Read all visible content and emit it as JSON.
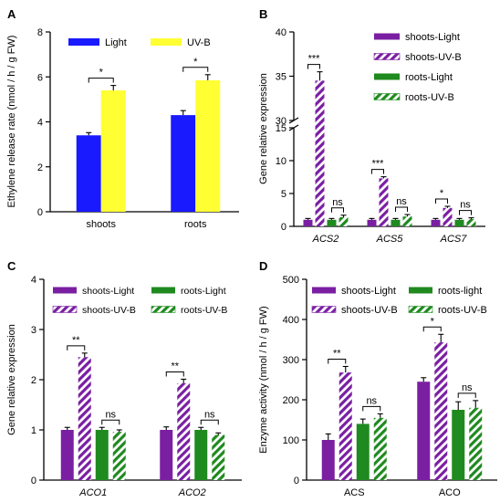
{
  "colors": {
    "light_blue": "#1a1aff",
    "uvb_yellow": "#ffff33",
    "purple": "#7a1fa2",
    "green": "#1f8a1f",
    "axis": "#000000"
  },
  "chart_data": [
    {
      "panel": "A",
      "type": "bar",
      "ylabel": "Ethylene release rate (nmol / h / g FW)",
      "ylim": [
        0,
        8
      ],
      "yticks": [
        "0",
        "2",
        "4",
        "6",
        "8"
      ],
      "categories": [
        "shoots",
        "roots"
      ],
      "legend_position": "top",
      "series": [
        {
          "name": "Light",
          "style": "solid",
          "color": "#1a1aff",
          "values": [
            3.4,
            4.3
          ],
          "errors": [
            0.12,
            0.2
          ]
        },
        {
          "name": "UV-B",
          "style": "solid",
          "color": "#ffff33",
          "values": [
            5.4,
            5.85
          ],
          "errors": [
            0.22,
            0.25
          ]
        }
      ],
      "significance": [
        {
          "category": 0,
          "label": "*"
        },
        {
          "category": 1,
          "label": "*"
        }
      ]
    },
    {
      "panel": "B",
      "type": "bar",
      "ylabel": "Gene relative expression",
      "broken_axis": true,
      "ylim_lower": [
        0,
        15
      ],
      "ylim_upper": [
        30,
        40
      ],
      "yticks_lower": [
        "0",
        "5",
        "10",
        "15"
      ],
      "yticks_upper": [
        "30",
        "35",
        "40"
      ],
      "categories": [
        "ACS2",
        "ACS5",
        "ACS7"
      ],
      "legend_position": "top-right",
      "series": [
        {
          "name": "shoots-Light",
          "style": "solid",
          "color": "#7a1fa2",
          "values": [
            1.0,
            1.0,
            1.0
          ],
          "errors": [
            0.2,
            0.2,
            0.2
          ]
        },
        {
          "name": "shoots-UV-B",
          "style": "hatched",
          "color": "#7a1fa2",
          "values": [
            34.5,
            7.3,
            2.8
          ],
          "errors": [
            1.0,
            0.25,
            0.25
          ]
        },
        {
          "name": "roots-Light",
          "style": "solid",
          "color": "#1f8a1f",
          "values": [
            1.0,
            1.0,
            1.0
          ],
          "errors": [
            0.2,
            0.2,
            0.2
          ]
        },
        {
          "name": "roots-UV-B",
          "style": "hatched",
          "color": "#1f8a1f",
          "values": [
            1.4,
            1.5,
            1.1
          ],
          "errors": [
            0.3,
            0.3,
            0.2
          ]
        }
      ],
      "significance": [
        {
          "category": 0,
          "label": "***"
        },
        {
          "category": 0,
          "label": "ns"
        },
        {
          "category": 1,
          "label": "***"
        },
        {
          "category": 1,
          "label": "ns"
        },
        {
          "category": 2,
          "label": "*"
        },
        {
          "category": 2,
          "label": "ns"
        }
      ]
    },
    {
      "panel": "C",
      "type": "bar",
      "ylabel": "Gene relative expression",
      "ylim": [
        0,
        4
      ],
      "yticks": [
        "0",
        "1",
        "2",
        "3",
        "4"
      ],
      "categories": [
        "ACO1",
        "ACO2"
      ],
      "legend_position": "top",
      "series": [
        {
          "name": "shoots-Light",
          "style": "solid",
          "color": "#7a1fa2",
          "values": [
            1.0,
            1.0
          ],
          "errors": [
            0.05,
            0.06
          ]
        },
        {
          "name": "shoots-UV-B",
          "style": "hatched",
          "color": "#7a1fa2",
          "values": [
            2.45,
            1.93
          ],
          "errors": [
            0.08,
            0.08
          ]
        },
        {
          "name": "roots-Light",
          "style": "solid",
          "color": "#1f8a1f",
          "values": [
            1.0,
            1.0
          ],
          "errors": [
            0.05,
            0.05
          ]
        },
        {
          "name": "roots-UV-B",
          "style": "hatched",
          "color": "#1f8a1f",
          "values": [
            0.96,
            0.9
          ],
          "errors": [
            0.04,
            0.04
          ]
        }
      ],
      "significance": [
        {
          "category": 0,
          "label": "**"
        },
        {
          "category": 0,
          "label": "ns"
        },
        {
          "category": 1,
          "label": "**"
        },
        {
          "category": 1,
          "label": "ns"
        }
      ]
    },
    {
      "panel": "D",
      "type": "bar",
      "ylabel": "Enzyme activity (nmol / h / g FW)",
      "ylim": [
        0,
        500
      ],
      "yticks": [
        "0",
        "100",
        "200",
        "300",
        "400",
        "500"
      ],
      "categories": [
        "ACS",
        "ACO"
      ],
      "legend_position": "top",
      "series": [
        {
          "name": "shoots-Light",
          "style": "solid",
          "color": "#7a1fa2",
          "values": [
            100,
            245
          ],
          "errors": [
            15,
            10
          ]
        },
        {
          "name": "shoots-UV-B",
          "style": "hatched",
          "color": "#7a1fa2",
          "values": [
            268,
            343
          ],
          "errors": [
            15,
            20
          ]
        },
        {
          "name": "roots-light",
          "style": "solid",
          "color": "#1f8a1f",
          "values": [
            140,
            175
          ],
          "errors": [
            12,
            20
          ]
        },
        {
          "name": "roots-UV-B",
          "style": "hatched",
          "color": "#1f8a1f",
          "values": [
            155,
            180
          ],
          "errors": [
            10,
            18
          ]
        }
      ],
      "significance": [
        {
          "category": 0,
          "label": "**"
        },
        {
          "category": 0,
          "label": "ns"
        },
        {
          "category": 1,
          "label": "*"
        },
        {
          "category": 1,
          "label": "ns"
        }
      ]
    }
  ]
}
